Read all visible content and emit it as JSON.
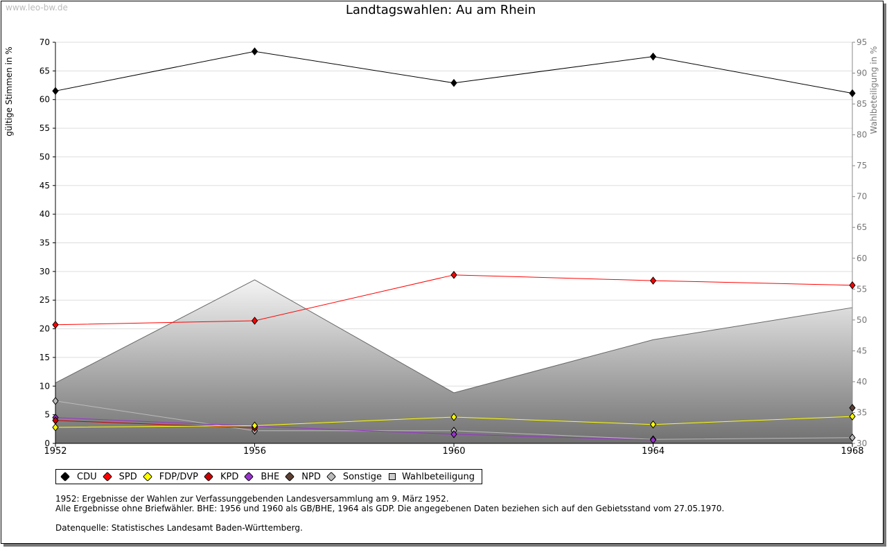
{
  "watermark": "www.leo-bw.de",
  "chart_data": {
    "type": "line",
    "title": "Landtagswahlen: Au am Rhein",
    "ylabel": "gültige Stimmen in %",
    "y2label": "Wahlbeteiligung in %",
    "x": [
      "1952",
      "1956",
      "1960",
      "1964",
      "1968"
    ],
    "ylim": [
      0,
      70
    ],
    "y2lim": [
      30,
      95
    ],
    "yticks": [
      0,
      5,
      10,
      15,
      20,
      25,
      30,
      35,
      40,
      45,
      50,
      55,
      60,
      65,
      70
    ],
    "y2ticks": [
      30,
      35,
      40,
      45,
      50,
      55,
      60,
      65,
      70,
      75,
      80,
      85,
      90,
      95
    ],
    "series": [
      {
        "name": "CDU",
        "color": "#000000",
        "values": [
          61.5,
          68.4,
          62.9,
          67.5,
          61.1
        ]
      },
      {
        "name": "SPD",
        "color": "#ff0000",
        "values": [
          20.7,
          21.4,
          29.4,
          28.4,
          27.6
        ]
      },
      {
        "name": "FDP/DVP",
        "color": "#ffff00",
        "values": [
          2.8,
          3.1,
          4.6,
          3.3,
          4.7
        ]
      },
      {
        "name": "KPD",
        "color": "#cc0000",
        "values": [
          4.0,
          2.7,
          null,
          null,
          null
        ]
      },
      {
        "name": "BHE",
        "color": "#9933cc",
        "values": [
          4.5,
          3.0,
          1.6,
          0.6,
          null
        ]
      },
      {
        "name": "NPD",
        "color": "#5c4033",
        "values": [
          null,
          null,
          null,
          null,
          6.2
        ]
      },
      {
        "name": "Sonstige",
        "color": "#bbbbbb",
        "values": [
          7.4,
          2.2,
          2.2,
          0.7,
          1.0
        ]
      }
    ],
    "area": {
      "name": "Wahlbeteiligung",
      "axis": "right",
      "values": [
        39.8,
        56.5,
        38.2,
        46.8,
        52.0
      ]
    },
    "legend_position": "bottom-left"
  },
  "notes": [
    "1952: Ergebnisse der Wahlen zur Verfassunggebenden Landesversammlung am 9. März 1952.",
    "Alle Ergebnisse ohne Briefwähler. BHE: 1956 und 1960 als GB/BHE, 1964 als GDP. Die angegebenen Daten beziehen sich auf den Gebietsstand vom 27.05.1970.",
    "",
    "Datenquelle: Statistisches Landesamt Baden-Württemberg."
  ]
}
